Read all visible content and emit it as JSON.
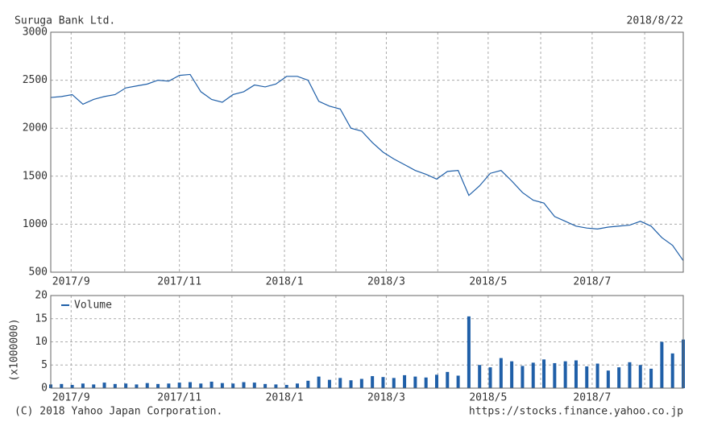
{
  "header": {
    "title": "Suruga Bank Ltd.",
    "date": "2018/8/22"
  },
  "footer": {
    "copyright": "(C) 2018 Yahoo Japan Corporation.",
    "url": "https://stocks.finance.yahoo.co.jp"
  },
  "chart_data": [
    {
      "type": "line",
      "color": "#1f5fa8",
      "values": [
        2320,
        2330,
        2350,
        2250,
        2300,
        2330,
        2350,
        2420,
        2440,
        2460,
        2500,
        2490,
        2550,
        2560,
        2380,
        2300,
        2270,
        2350,
        2380,
        2450,
        2430,
        2460,
        2540,
        2540,
        2500,
        2280,
        2230,
        2200,
        2000,
        1970,
        1850,
        1750,
        1680,
        1620,
        1560,
        1520,
        1470,
        1550,
        1560,
        1300,
        1400,
        1530,
        1560,
        1450,
        1330,
        1250,
        1220,
        1080,
        1030,
        980,
        960,
        950,
        970,
        980,
        990,
        1030,
        980,
        860,
        780,
        620
      ],
      "xlim": [
        0,
        59
      ],
      "ylim": [
        500,
        3000
      ],
      "yticks": [
        500,
        1000,
        1500,
        2000,
        2500,
        3000
      ],
      "xticks": [
        {
          "value": 1.9,
          "label": "2017/9"
        },
        {
          "value": 6.9,
          "label": null
        },
        {
          "value": 12,
          "label": "2017/11"
        },
        {
          "value": 16.9,
          "label": null
        },
        {
          "value": 21.8,
          "label": "2018/1"
        },
        {
          "value": 26.6,
          "label": null
        },
        {
          "value": 31.3,
          "label": "2018/3"
        },
        {
          "value": 36.1,
          "label": null
        },
        {
          "value": 40.8,
          "label": "2018/5"
        },
        {
          "value": 45.7,
          "label": null
        },
        {
          "value": 50.5,
          "label": "2018/7"
        },
        {
          "value": 55.4,
          "label": null
        }
      ],
      "grid": true
    },
    {
      "type": "bar",
      "y_label": "(x1000000)",
      "series": [
        {
          "name": "Volume",
          "color": "#1f5fa8",
          "values": [
            0.8,
            0.9,
            0.7,
            1,
            0.8,
            1.2,
            0.9,
            1,
            0.8,
            1.1,
            0.9,
            1,
            1.2,
            1.3,
            1,
            1.4,
            1.1,
            1,
            1.3,
            1.2,
            0.9,
            0.8,
            0.7,
            1,
            1.6,
            2.5,
            1.8,
            2.2,
            1.7,
            2,
            2.6,
            2.4,
            2.2,
            2.8,
            2.5,
            2.3,
            2.9,
            3.5,
            2.7,
            15.5,
            5,
            4.5,
            6.5,
            5.8,
            4.8,
            5.5,
            6.2,
            5.4,
            5.8,
            6,
            4.7,
            5.3,
            3.8,
            4.5,
            5.6,
            5,
            4.2,
            10,
            7.5,
            10.5
          ]
        }
      ],
      "xlim": [
        0,
        59
      ],
      "ylim": [
        0,
        20
      ],
      "yticks": [
        0,
        5,
        10,
        15,
        20
      ],
      "xticks": [
        {
          "value": 1.9,
          "label": "2017/9"
        },
        {
          "value": 6.9,
          "label": null
        },
        {
          "value": 12,
          "label": "2017/11"
        },
        {
          "value": 16.9,
          "label": null
        },
        {
          "value": 21.8,
          "label": "2018/1"
        },
        {
          "value": 26.6,
          "label": null
        },
        {
          "value": 31.3,
          "label": "2018/3"
        },
        {
          "value": 36.1,
          "label": null
        },
        {
          "value": 40.8,
          "label": "2018/5"
        },
        {
          "value": 45.7,
          "label": null
        },
        {
          "value": 50.5,
          "label": "2018/7"
        },
        {
          "value": 55.4,
          "label": null
        }
      ],
      "grid": true
    }
  ]
}
